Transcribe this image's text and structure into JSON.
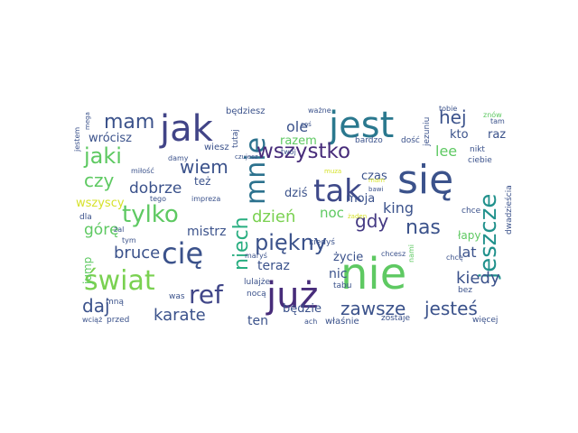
{
  "wordcloud": {
    "words": [
      {
        "text": "nie",
        "color": "#5ec962"
      },
      {
        "text": "się",
        "color": "#3b528b"
      },
      {
        "text": "już",
        "color": "#472c7a"
      },
      {
        "text": "jak",
        "color": "#414487"
      },
      {
        "text": "jest",
        "color": "#2a788e"
      },
      {
        "text": "tak",
        "color": "#3e4989"
      },
      {
        "text": "cię",
        "color": "#3b528b"
      },
      {
        "text": "mnie",
        "color": "#2c728e"
      },
      {
        "text": "świat",
        "color": "#7ad151"
      },
      {
        "text": "ref",
        "color": "#404688"
      },
      {
        "text": "piękny",
        "color": "#3b528b"
      },
      {
        "text": "wszystko",
        "color": "#472c7a"
      },
      {
        "text": "jeszcze",
        "color": "#21918c"
      },
      {
        "text": "tylko",
        "color": "#5ec962"
      },
      {
        "text": "niech",
        "color": "#28ae80"
      },
      {
        "text": "jaki",
        "color": "#5ec962"
      },
      {
        "text": "mam",
        "color": "#3b528b"
      },
      {
        "text": "zawsze",
        "color": "#3b528b"
      },
      {
        "text": "jesteś",
        "color": "#3b528b"
      },
      {
        "text": "karate",
        "color": "#3b528b"
      },
      {
        "text": "gdy",
        "color": "#443983"
      },
      {
        "text": "nas",
        "color": "#3b528b"
      },
      {
        "text": "wiem",
        "color": "#3b528b"
      },
      {
        "text": "czy",
        "color": "#5ec962"
      },
      {
        "text": "daj",
        "color": "#3b528b"
      },
      {
        "text": "hej",
        "color": "#3b528b"
      },
      {
        "text": "bruce",
        "color": "#3b528b"
      },
      {
        "text": "dzień",
        "color": "#7ad151"
      },
      {
        "text": "kiedy",
        "color": "#3b528b"
      },
      {
        "text": "dobrze",
        "color": "#3b528b"
      },
      {
        "text": "górę",
        "color": "#5ec962"
      },
      {
        "text": "ole",
        "color": "#3b528b"
      },
      {
        "text": "lee",
        "color": "#5ec962"
      },
      {
        "text": "king",
        "color": "#3b528b"
      },
      {
        "text": "noc",
        "color": "#5ec962"
      },
      {
        "text": "lat",
        "color": "#3b528b"
      },
      {
        "text": "mistrz",
        "color": "#3b528b"
      },
      {
        "text": "teraz",
        "color": "#3b528b"
      },
      {
        "text": "nic",
        "color": "#3b528b"
      },
      {
        "text": "ten",
        "color": "#3b528b"
      },
      {
        "text": "będzie",
        "color": "#3b528b"
      },
      {
        "text": "czas",
        "color": "#3b528b"
      },
      {
        "text": "wrócisz",
        "color": "#3b528b"
      },
      {
        "text": "razem",
        "color": "#5ec962"
      },
      {
        "text": "kto",
        "color": "#3b528b"
      },
      {
        "text": "raz",
        "color": "#3b528b"
      },
      {
        "text": "dziś",
        "color": "#3b528b"
      },
      {
        "text": "moja",
        "color": "#3b528b"
      },
      {
        "text": "też",
        "color": "#3b528b"
      },
      {
        "text": "wszyscy",
        "color": "#d6e22b"
      },
      {
        "text": "łapy",
        "color": "#5ec962"
      },
      {
        "text": "życie",
        "color": "#3b528b"
      },
      {
        "text": "jump",
        "color": "#5ec962"
      },
      {
        "text": "wiesz",
        "color": "#3b528b"
      },
      {
        "text": "będziesz",
        "color": "#3b528b"
      },
      {
        "text": "tutaj",
        "color": "#3b528b"
      },
      {
        "text": "bardzo",
        "color": "#3b528b"
      },
      {
        "text": "jezuniu",
        "color": "#3b528b"
      },
      {
        "text": "nikt",
        "color": "#3b528b"
      },
      {
        "text": "ciebie",
        "color": "#3b528b"
      },
      {
        "text": "dwadzieścia",
        "color": "#3b528b"
      },
      {
        "text": "chcę",
        "color": "#3b528b"
      },
      {
        "text": "chce",
        "color": "#3b528b"
      },
      {
        "text": "lulajże",
        "color": "#3b528b"
      },
      {
        "text": "mną",
        "color": "#3b528b"
      },
      {
        "text": "nocą",
        "color": "#3b528b"
      },
      {
        "text": "tabu",
        "color": "#3b528b"
      },
      {
        "text": "bez",
        "color": "#3b528b"
      },
      {
        "text": "właśnie",
        "color": "#3b528b"
      },
      {
        "text": "zostaje",
        "color": "#3b528b"
      },
      {
        "text": "więcej",
        "color": "#3b528b"
      },
      {
        "text": "przed",
        "color": "#3b528b"
      },
      {
        "text": "wciąż",
        "color": "#3b528b"
      },
      {
        "text": "was",
        "color": "#3b528b"
      },
      {
        "text": "ach",
        "color": "#3b528b"
      },
      {
        "text": "kiedyś",
        "color": "#3b528b"
      },
      {
        "text": "maryś",
        "color": "#3b528b"
      },
      {
        "text": "chcesz",
        "color": "#3b528b"
      },
      {
        "text": "dla",
        "color": "#3b528b"
      },
      {
        "text": "żal",
        "color": "#3b528b"
      },
      {
        "text": "tym",
        "color": "#3b528b"
      },
      {
        "text": "impreza",
        "color": "#3b528b"
      },
      {
        "text": "tego",
        "color": "#3b528b"
      },
      {
        "text": "miłość",
        "color": "#3b528b"
      },
      {
        "text": "damy",
        "color": "#3b528b"
      },
      {
        "text": "czujesz",
        "color": "#3b528b"
      },
      {
        "text": "mega",
        "color": "#3b528b"
      },
      {
        "text": "jestem",
        "color": "#3b528b"
      },
      {
        "text": "coś",
        "color": "#3b528b"
      },
      {
        "text": "ważne",
        "color": "#3b528b"
      },
      {
        "text": "tobie",
        "color": "#3b528b"
      },
      {
        "text": "znów",
        "color": "#5ec962"
      },
      {
        "text": "tam",
        "color": "#3b528b"
      },
      {
        "text": "dość",
        "color": "#3b528b"
      },
      {
        "text": "twój",
        "color": "#3b528b"
      },
      {
        "text": "muza",
        "color": "#d6e22b"
      },
      {
        "text": "bawi",
        "color": "#3b528b"
      },
      {
        "text": "mam",
        "color": "#d6e22b"
      },
      {
        "text": "żaden",
        "color": "#d6e22b"
      },
      {
        "text": "nami",
        "color": "#5ec962"
      }
    ]
  }
}
